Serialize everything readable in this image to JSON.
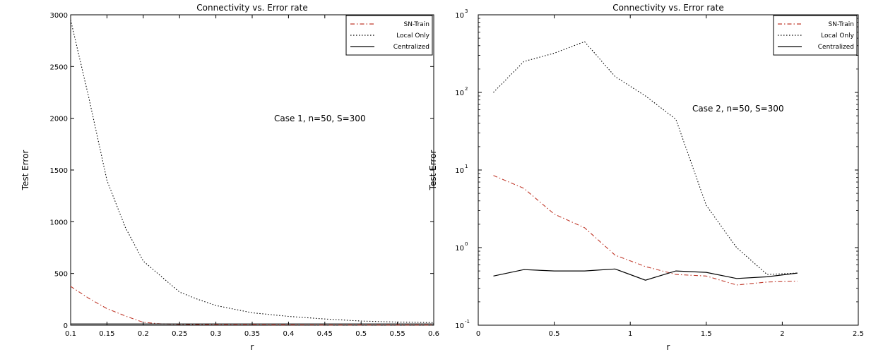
{
  "chart_data": [
    {
      "type": "line",
      "title": "Connectivity vs. Error rate",
      "xlabel": "r",
      "ylabel": "Test Error",
      "xlim": [
        0.1,
        0.6
      ],
      "ylim": [
        0,
        3000
      ],
      "yscale": "linear",
      "grid": false,
      "legend_position": "top-right",
      "xticks": [
        0.1,
        0.15,
        0.2,
        0.25,
        0.3,
        0.35,
        0.4,
        0.45,
        0.5,
        0.55,
        0.6
      ],
      "xtick_labels": [
        "0.1",
        "0.15",
        "0.2",
        "0.25",
        "0.3",
        "0.35",
        "0.4",
        "0.45",
        "0.5",
        "0.55",
        "0.6"
      ],
      "yticks": [
        0,
        500,
        1000,
        1500,
        2000,
        2500,
        3000
      ],
      "ytick_labels": [
        "0",
        "500",
        "1000",
        "1500",
        "2000",
        "2500",
        "3000"
      ],
      "annotation": "Case 1, n=50, S=300",
      "series": [
        {
          "name": "SN-Train",
          "color": "#c0392b",
          "style": "dashdot",
          "x": [
            0.1,
            0.125,
            0.15,
            0.175,
            0.2,
            0.225,
            0.25,
            0.3,
            0.4,
            0.5,
            0.6
          ],
          "y": [
            375,
            260,
            160,
            90,
            28,
            12,
            8,
            5,
            3,
            2,
            2
          ]
        },
        {
          "name": "Local Only",
          "color": "#000000",
          "style": "dotted",
          "x": [
            0.1,
            0.125,
            0.15,
            0.175,
            0.2,
            0.225,
            0.25,
            0.275,
            0.3,
            0.35,
            0.4,
            0.45,
            0.5,
            0.55,
            0.6
          ],
          "y": [
            2950,
            2200,
            1400,
            950,
            620,
            470,
            320,
            250,
            190,
            120,
            85,
            60,
            40,
            30,
            25
          ]
        },
        {
          "name": "Centralized",
          "color": "#000000",
          "style": "solid",
          "x": [
            0.1,
            0.6
          ],
          "y": [
            12,
            12
          ]
        }
      ]
    },
    {
      "type": "line",
      "title": "Connectivity vs. Error rate",
      "xlabel": "r",
      "ylabel": "Test Error",
      "xlim": [
        0,
        2.5
      ],
      "ylim": [
        0.1,
        1000
      ],
      "yscale": "log",
      "grid": false,
      "legend_position": "top-right",
      "xticks": [
        0,
        0.5,
        1,
        1.5,
        2,
        2.5
      ],
      "xtick_labels": [
        "0",
        "0.5",
        "1",
        "1.5",
        "2",
        "2.5"
      ],
      "yticks": [
        0.1,
        1,
        10,
        100,
        1000
      ],
      "ytick_labels": [
        "10",
        "10",
        "10",
        "10",
        "10"
      ],
      "ytick_exponents": [
        "-1",
        "0",
        "1",
        "2",
        "3"
      ],
      "annotation": "Case 2, n=50, S=300",
      "series": [
        {
          "name": "SN-Train",
          "color": "#c0392b",
          "style": "dashdot",
          "x": [
            0.1,
            0.3,
            0.5,
            0.7,
            0.9,
            1.1,
            1.3,
            1.5,
            1.7,
            1.9,
            2.1
          ],
          "y": [
            8.5,
            5.8,
            2.7,
            1.8,
            0.8,
            0.57,
            0.45,
            0.43,
            0.33,
            0.36,
            0.37
          ]
        },
        {
          "name": "Local Only",
          "color": "#000000",
          "style": "dotted",
          "x": [
            0.1,
            0.3,
            0.5,
            0.7,
            0.9,
            1.1,
            1.3,
            1.5,
            1.7,
            1.9,
            2.1
          ],
          "y": [
            100,
            250,
            320,
            450,
            160,
            90,
            45,
            3.5,
            1.0,
            0.45,
            0.47
          ]
        },
        {
          "name": "Centralized",
          "color": "#000000",
          "style": "solid",
          "x": [
            0.1,
            0.3,
            0.5,
            0.7,
            0.9,
            1.1,
            1.3,
            1.5,
            1.7,
            1.9,
            2.1
          ],
          "y": [
            0.43,
            0.52,
            0.5,
            0.5,
            0.53,
            0.38,
            0.5,
            0.48,
            0.4,
            0.42,
            0.47
          ]
        }
      ]
    }
  ]
}
